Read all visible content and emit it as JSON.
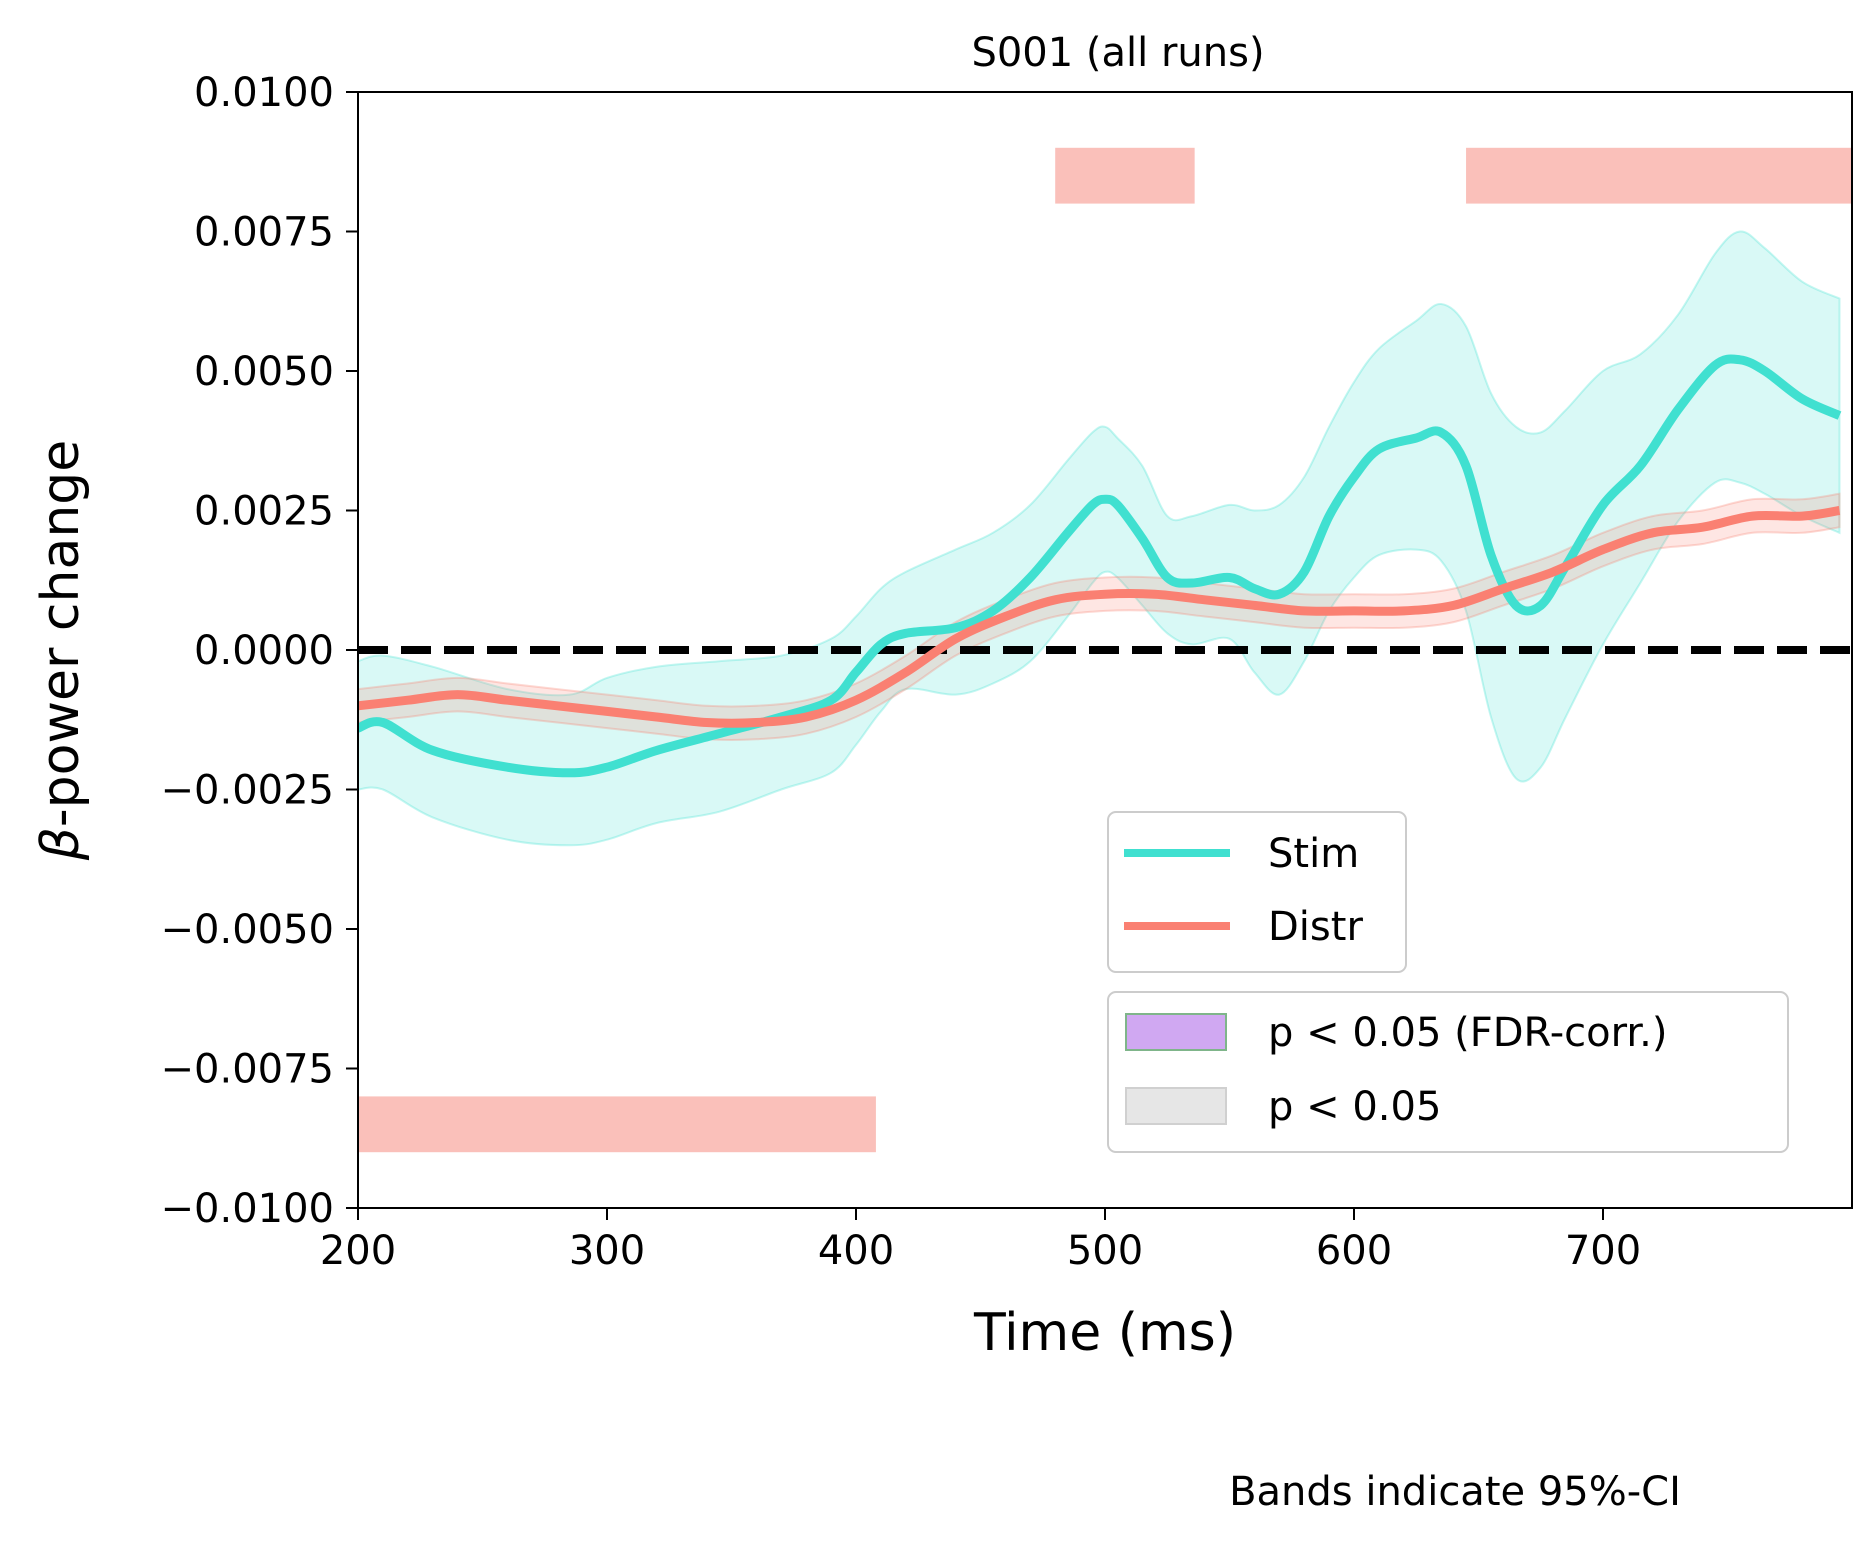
{
  "chart_data": {
    "type": "line",
    "title": "S001 (all runs)",
    "xlabel": "Time (ms)",
    "ylabel_symbol": "β",
    "ylabel_rest": "-power change",
    "xlim": [
      200,
      800
    ],
    "ylim": [
      -0.01,
      0.01
    ],
    "x_ticks": [
      200,
      300,
      400,
      500,
      600,
      700
    ],
    "x_tick_labels": [
      "200",
      "300",
      "400",
      "500",
      "600",
      "700"
    ],
    "y_ticks": [
      -0.01,
      -0.0075,
      -0.005,
      -0.0025,
      0,
      0.0025,
      0.005,
      0.0075,
      0.01
    ],
    "y_tick_labels": [
      "−0.0100",
      "−0.0075",
      "−0.0050",
      "−0.0025",
      "0.0000",
      "0.0025",
      "0.0050",
      "0.0075",
      "0.0100"
    ],
    "zero_line": {
      "y": 0,
      "style": "dashed",
      "color": "#000000"
    },
    "series": [
      {
        "name": "Stim",
        "color": "#40E0D0",
        "band_color": "#40E0D0",
        "x": [
          200,
          210,
          230,
          260,
          285,
          300,
          320,
          345,
          370,
          390,
          400,
          410,
          420,
          440,
          455,
          470,
          485,
          495,
          500,
          505,
          515,
          525,
          535,
          550,
          560,
          570,
          580,
          590,
          600,
          610,
          625,
          635,
          645,
          655,
          665,
          675,
          685,
          700,
          715,
          730,
          745,
          755,
          765,
          780,
          795
        ],
        "y": [
          -0.0014,
          -0.0013,
          -0.0018,
          -0.0021,
          -0.0022,
          -0.0021,
          -0.0018,
          -0.0015,
          -0.0012,
          -0.0009,
          -0.0004,
          0.0001,
          0.0003,
          0.0004,
          0.0007,
          0.0013,
          0.0021,
          0.0026,
          0.0027,
          0.0026,
          0.002,
          0.0013,
          0.0012,
          0.0013,
          0.0011,
          0.001,
          0.0014,
          0.0024,
          0.0031,
          0.0036,
          0.0038,
          0.0039,
          0.0033,
          0.0017,
          0.0008,
          0.0008,
          0.0015,
          0.0026,
          0.0033,
          0.0043,
          0.0051,
          0.0052,
          0.005,
          0.0045,
          0.0042
        ],
        "upper": [
          -0.0002,
          -0.0001,
          -0.0003,
          -0.0007,
          -0.0008,
          -0.0005,
          -0.0003,
          -0.0002,
          -0.0001,
          0.0002,
          0.0006,
          0.0011,
          0.0014,
          0.0018,
          0.0021,
          0.0026,
          0.0034,
          0.0039,
          0.004,
          0.0038,
          0.0033,
          0.0024,
          0.0024,
          0.0026,
          0.0025,
          0.0026,
          0.0031,
          0.004,
          0.0048,
          0.0054,
          0.0059,
          0.0062,
          0.0058,
          0.0046,
          0.004,
          0.0039,
          0.0043,
          0.005,
          0.0053,
          0.006,
          0.0071,
          0.0075,
          0.0072,
          0.0066,
          0.0063
        ],
        "lower": [
          -0.0025,
          -0.0025,
          -0.003,
          -0.0034,
          -0.0035,
          -0.0034,
          -0.0031,
          -0.0029,
          -0.0025,
          -0.0022,
          -0.0017,
          -0.0011,
          -0.0007,
          -0.0008,
          -0.0006,
          -0.0002,
          0.0006,
          0.0012,
          0.0014,
          0.0013,
          0.0008,
          0.0003,
          0.0001,
          0.0002,
          -0.0004,
          -0.0008,
          -0.0002,
          0.0007,
          0.0013,
          0.0017,
          0.0018,
          0.0016,
          0.0007,
          -0.0012,
          -0.0023,
          -0.0021,
          -0.0012,
          0.0001,
          0.0012,
          0.0023,
          0.003,
          0.003,
          0.0028,
          0.0024,
          0.0021
        ]
      },
      {
        "name": "Distr",
        "color": "#FA8072",
        "band_color": "#FA8072",
        "x": [
          200,
          220,
          240,
          260,
          280,
          300,
          320,
          340,
          360,
          380,
          400,
          420,
          440,
          460,
          480,
          500,
          520,
          540,
          560,
          580,
          600,
          620,
          640,
          660,
          680,
          700,
          720,
          740,
          760,
          780,
          795
        ],
        "y": [
          -0.001,
          -0.0009,
          -0.0008,
          -0.0009,
          -0.001,
          -0.0011,
          -0.0012,
          -0.0013,
          -0.0013,
          -0.0012,
          -0.0009,
          -0.0004,
          0.0002,
          0.0006,
          0.0009,
          0.001,
          0.001,
          0.0009,
          0.0008,
          0.0007,
          0.0007,
          0.0007,
          0.0008,
          0.0011,
          0.0014,
          0.0018,
          0.0021,
          0.0022,
          0.0024,
          0.0024,
          0.0025
        ],
        "upper": [
          -0.0007,
          -0.0006,
          -0.0005,
          -0.0006,
          -0.0007,
          -0.0008,
          -0.0009,
          -0.001,
          -0.001,
          -0.0009,
          -0.0006,
          -0.0001,
          0.0005,
          0.0009,
          0.0012,
          0.0013,
          0.0013,
          0.0012,
          0.0011,
          0.001,
          0.001,
          0.001,
          0.0011,
          0.0014,
          0.0017,
          0.0021,
          0.0024,
          0.0025,
          0.0027,
          0.0027,
          0.0028
        ],
        "lower": [
          -0.0013,
          -0.0012,
          -0.0011,
          -0.0012,
          -0.0013,
          -0.0014,
          -0.0015,
          -0.0016,
          -0.0016,
          -0.0015,
          -0.0012,
          -0.0007,
          -0.0001,
          0.0003,
          0.0006,
          0.0007,
          0.0007,
          0.0006,
          0.0005,
          0.0004,
          0.0004,
          0.0004,
          0.0005,
          0.0008,
          0.0011,
          0.0015,
          0.0018,
          0.0019,
          0.0021,
          0.0021,
          0.0022
        ]
      }
    ],
    "significance_bars": [
      {
        "x_start": 480,
        "x_end": 536,
        "y_low": 0.008,
        "y_high": 0.009,
        "color": "#FAC0BA"
      },
      {
        "x_start": 645,
        "x_end": 800,
        "y_low": 0.008,
        "y_high": 0.009,
        "color": "#FAC0BA"
      },
      {
        "x_start": 200,
        "x_end": 408,
        "y_low": -0.009,
        "y_high": -0.008,
        "color": "#FAC0BA"
      }
    ],
    "legend_lines": {
      "placement": "lower-right",
      "entries": [
        {
          "label": "Stim",
          "color": "#40E0D0"
        },
        {
          "label": "Distr",
          "color": "#FA8072"
        }
      ]
    },
    "legend_patches": {
      "placement": "lower-right",
      "entries": [
        {
          "label": "p < 0.05 (FDR-corr.)",
          "fill": "#D0A8F2",
          "edge": "#7FB58A"
        },
        {
          "label": "p < 0.05",
          "fill": "#E6E6E6",
          "edge": "#D0D0D0"
        }
      ]
    },
    "note": "Bands indicate 95%-CI"
  }
}
